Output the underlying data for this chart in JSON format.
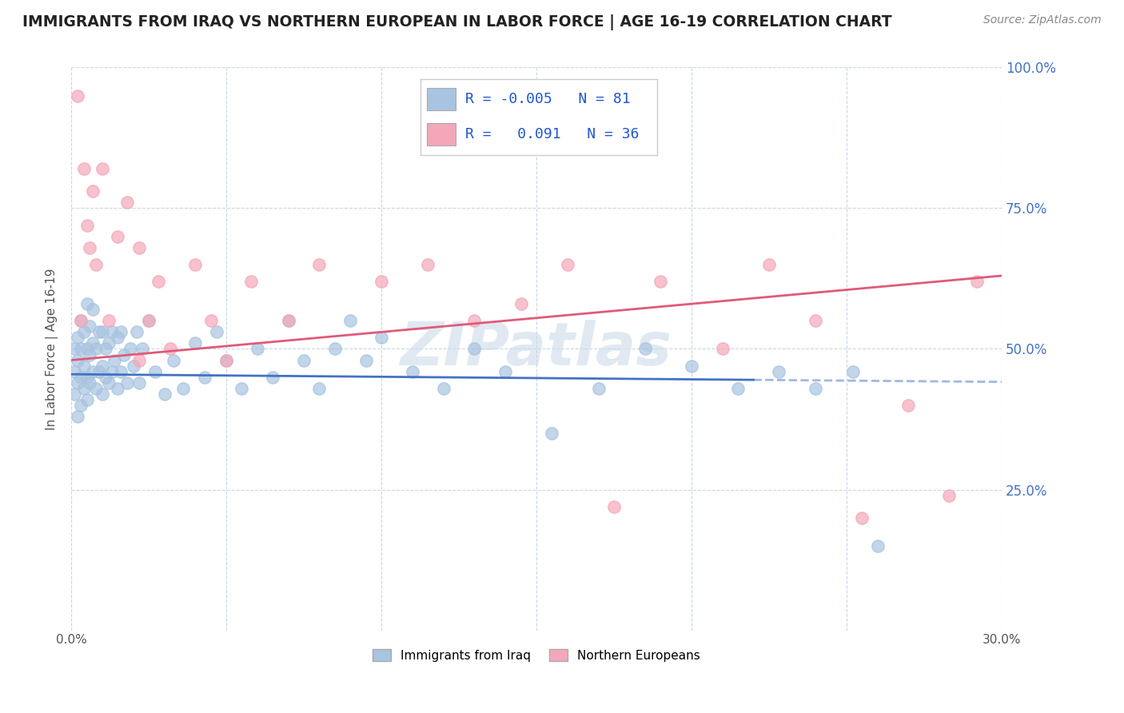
{
  "title": "IMMIGRANTS FROM IRAQ VS NORTHERN EUROPEAN IN LABOR FORCE | AGE 16-19 CORRELATION CHART",
  "source_text": "Source: ZipAtlas.com",
  "ylabel": "In Labor Force | Age 16-19",
  "xlim": [
    0.0,
    0.3
  ],
  "ylim": [
    0.0,
    1.0
  ],
  "x_tick_positions": [
    0.0,
    0.05,
    0.1,
    0.15,
    0.2,
    0.25,
    0.3
  ],
  "x_tick_labels": [
    "0.0%",
    "",
    "",
    "",
    "",
    "",
    "30.0%"
  ],
  "y_tick_positions": [
    0.0,
    0.25,
    0.5,
    0.75,
    1.0
  ],
  "y_tick_labels": [
    "",
    "25.0%",
    "50.0%",
    "75.0%",
    "100.0%"
  ],
  "color_iraq": "#a8c4e0",
  "color_northern": "#f4a7b9",
  "color_iraq_line": "#4472c4",
  "color_northern_line": "#e05a7a",
  "watermark": "ZIPatlas",
  "background_color": "#ffffff",
  "grid_color": "#c8d8e8",
  "iraq_line_y0": 0.455,
  "iraq_line_y1": 0.445,
  "iraq_line_x0": 0.0,
  "iraq_line_x1": 0.22,
  "northern_line_y0": 0.48,
  "northern_line_y1": 0.63,
  "northern_line_x0": 0.0,
  "northern_line_x1": 0.3,
  "iraq_scatter_x": [
    0.001,
    0.001,
    0.001,
    0.002,
    0.002,
    0.002,
    0.002,
    0.003,
    0.003,
    0.003,
    0.003,
    0.004,
    0.004,
    0.004,
    0.005,
    0.005,
    0.005,
    0.005,
    0.006,
    0.006,
    0.006,
    0.007,
    0.007,
    0.007,
    0.008,
    0.008,
    0.009,
    0.009,
    0.01,
    0.01,
    0.01,
    0.011,
    0.011,
    0.012,
    0.012,
    0.013,
    0.013,
    0.014,
    0.015,
    0.015,
    0.016,
    0.016,
    0.017,
    0.018,
    0.019,
    0.02,
    0.021,
    0.022,
    0.023,
    0.025,
    0.027,
    0.03,
    0.033,
    0.036,
    0.04,
    0.043,
    0.047,
    0.05,
    0.055,
    0.06,
    0.065,
    0.07,
    0.075,
    0.08,
    0.085,
    0.09,
    0.095,
    0.1,
    0.11,
    0.12,
    0.13,
    0.14,
    0.155,
    0.17,
    0.185,
    0.2,
    0.215,
    0.228,
    0.24,
    0.252,
    0.26
  ],
  "iraq_scatter_y": [
    0.42,
    0.46,
    0.5,
    0.38,
    0.44,
    0.48,
    0.52,
    0.4,
    0.45,
    0.5,
    0.55,
    0.43,
    0.47,
    0.53,
    0.41,
    0.45,
    0.5,
    0.58,
    0.44,
    0.49,
    0.54,
    0.46,
    0.51,
    0.57,
    0.43,
    0.5,
    0.46,
    0.53,
    0.42,
    0.47,
    0.53,
    0.45,
    0.5,
    0.44,
    0.51,
    0.46,
    0.53,
    0.48,
    0.43,
    0.52,
    0.46,
    0.53,
    0.49,
    0.44,
    0.5,
    0.47,
    0.53,
    0.44,
    0.5,
    0.55,
    0.46,
    0.42,
    0.48,
    0.43,
    0.51,
    0.45,
    0.53,
    0.48,
    0.43,
    0.5,
    0.45,
    0.55,
    0.48,
    0.43,
    0.5,
    0.55,
    0.48,
    0.52,
    0.46,
    0.43,
    0.5,
    0.46,
    0.35,
    0.43,
    0.5,
    0.47,
    0.43,
    0.46,
    0.43,
    0.46,
    0.15
  ],
  "northern_scatter_x": [
    0.002,
    0.003,
    0.004,
    0.005,
    0.006,
    0.007,
    0.008,
    0.01,
    0.012,
    0.015,
    0.018,
    0.022,
    0.022,
    0.025,
    0.028,
    0.032,
    0.04,
    0.045,
    0.05,
    0.058,
    0.07,
    0.08,
    0.1,
    0.115,
    0.13,
    0.145,
    0.16,
    0.175,
    0.19,
    0.21,
    0.225,
    0.24,
    0.255,
    0.27,
    0.283,
    0.292
  ],
  "northern_scatter_y": [
    0.95,
    0.55,
    0.82,
    0.72,
    0.68,
    0.78,
    0.65,
    0.82,
    0.55,
    0.7,
    0.76,
    0.68,
    0.48,
    0.55,
    0.62,
    0.5,
    0.65,
    0.55,
    0.48,
    0.62,
    0.55,
    0.65,
    0.62,
    0.65,
    0.55,
    0.58,
    0.65,
    0.22,
    0.62,
    0.5,
    0.65,
    0.55,
    0.2,
    0.4,
    0.24,
    0.62
  ]
}
